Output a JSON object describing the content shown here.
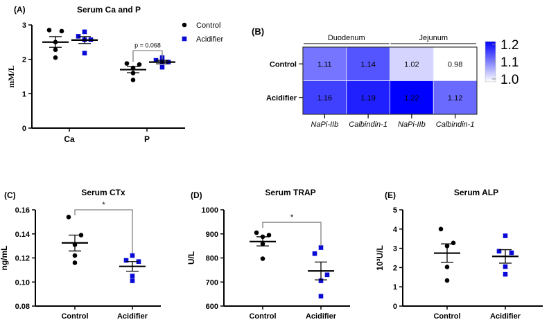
{
  "colors": {
    "control": "#000000",
    "acidifier": "#0a0ad6",
    "heat_high": "#0000ff",
    "heat_low": "#ffffff",
    "bracket": "#808080"
  },
  "chart_data": [
    {
      "id": "A",
      "type": "scatter",
      "panel_label": "(A)",
      "title": "Serum Ca and P",
      "ylabel": "mM/L",
      "ylim": [
        0,
        3
      ],
      "yticks": [
        "0",
        "1",
        "2",
        "3"
      ],
      "categories": [
        "Ca",
        "P"
      ],
      "legend": {
        "placement": "top-right",
        "entries": [
          "Control",
          "Acidifier"
        ]
      },
      "series": [
        {
          "name": "Control",
          "groups": [
            {
              "category": "Ca",
              "values": [
                2.85,
                2.82,
                2.5,
                2.28,
                2.05
              ],
              "mean": 2.5,
              "sem_low": 2.35,
              "sem_high": 2.66
            },
            {
              "category": "P",
              "values": [
                1.88,
                1.85,
                1.75,
                1.6,
                1.4
              ],
              "mean": 1.7,
              "sem_low": 1.61,
              "sem_high": 1.79
            }
          ]
        },
        {
          "name": "Acidifier",
          "groups": [
            {
              "category": "Ca",
              "values": [
                2.8,
                2.67,
                2.57,
                2.57,
                2.18
              ],
              "mean": 2.56,
              "sem_low": 2.46,
              "sem_high": 2.66
            },
            {
              "category": "P",
              "values": [
                2.05,
                1.97,
                1.92,
                1.92,
                1.77
              ],
              "mean": 1.92,
              "sem_low": 1.87,
              "sem_high": 1.97
            }
          ]
        }
      ],
      "annotation": {
        "text": "p = 0.068",
        "category": "P",
        "level": 2.25
      }
    },
    {
      "id": "B",
      "type": "heatmap",
      "panel_label": "(B)",
      "rows": [
        "Control",
        "Acidifier"
      ],
      "columns": [
        "NaPi-IIb",
        "Calbindin-1",
        "NaPi-IIb",
        "Calbindin-1"
      ],
      "column_groups": [
        {
          "label": "Duodenum",
          "span": 2
        },
        {
          "label": "Jejunum",
          "span": 2
        }
      ],
      "values": [
        [
          1.11,
          1.14,
          1.02,
          0.98
        ],
        [
          1.16,
          1.19,
          1.22,
          1.12
        ]
      ],
      "value_labels": [
        [
          "1.11",
          "1.14",
          "1.02",
          "0.98"
        ],
        [
          "1.16",
          "1.19",
          "1.22",
          "1.12"
        ]
      ],
      "color_range": [
        0.98,
        1.22
      ],
      "colorbar_ticks": [
        "1.2",
        "1.1",
        "1.0"
      ]
    },
    {
      "id": "C",
      "type": "scatter",
      "panel_label": "(C)",
      "title": "Serum CTx",
      "ylabel": "ng/mL",
      "ylim": [
        0.08,
        0.16
      ],
      "yticks": [
        "0.08",
        "0.10",
        "0.12",
        "0.14",
        "0.16"
      ],
      "categories": [
        "Control",
        "Acidifier"
      ],
      "groups": [
        {
          "category": "Control",
          "values": [
            0.154,
            0.139,
            0.131,
            0.122,
            0.116
          ],
          "mean": 0.1325,
          "sem_low": 0.1258,
          "sem_high": 0.139
        },
        {
          "category": "Acidifier",
          "values": [
            0.122,
            0.118,
            0.117,
            0.105,
            0.101
          ],
          "mean": 0.113,
          "sem_low": 0.109,
          "sem_high": 0.117
        }
      ],
      "annotation": {
        "text": "*",
        "level": 0.16,
        "drop_to": 0.124
      }
    },
    {
      "id": "D",
      "type": "scatter",
      "panel_label": "(D)",
      "title": "Serum TRAP",
      "ylabel": "U/L",
      "ylim": [
        600,
        1000
      ],
      "yticks": [
        "600",
        "700",
        "800",
        "900",
        "1000"
      ],
      "categories": [
        "Control",
        "Acidifier"
      ],
      "groups": [
        {
          "category": "Control",
          "values": [
            905,
            895,
            888,
            858,
            797
          ],
          "mean": 868,
          "sem_low": 850,
          "sem_high": 888
        },
        {
          "category": "Acidifier",
          "values": [
            843,
            818,
            730,
            705,
            641
          ],
          "mean": 746,
          "sem_low": 709,
          "sem_high": 783
        }
      ],
      "annotation": {
        "text": "*",
        "level": 948,
        "drop_to": 850
      }
    },
    {
      "id": "E",
      "type": "scatter",
      "panel_label": "(E)",
      "title": "Serum ALP",
      "ylabel": "10³U/L",
      "ylim": [
        0,
        5
      ],
      "yticks": [
        "0",
        "1",
        "2",
        "3",
        "4",
        "5"
      ],
      "categories": [
        "Control",
        "Acidifier"
      ],
      "groups": [
        {
          "category": "Control",
          "values": [
            4.0,
            3.28,
            3.12,
            2.03,
            1.33
          ],
          "mean": 2.75,
          "sem_low": 2.27,
          "sem_high": 3.23
        },
        {
          "category": "Acidifier",
          "values": [
            3.65,
            2.85,
            2.77,
            2.05,
            1.65
          ],
          "mean": 2.58,
          "sem_low": 2.23,
          "sem_high": 2.93
        }
      ]
    }
  ]
}
